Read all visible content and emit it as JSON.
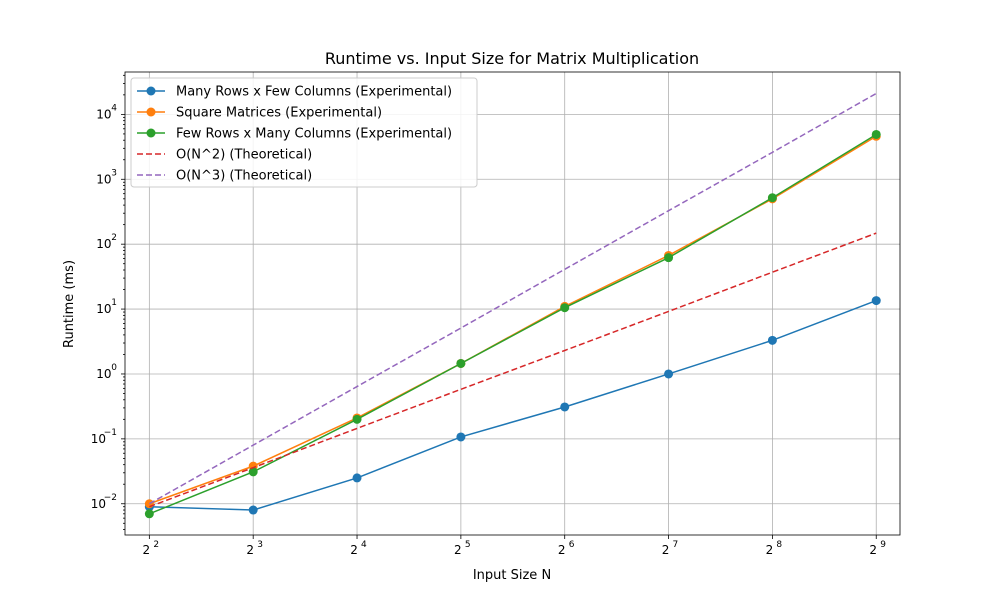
{
  "chart_data": {
    "type": "line",
    "title": "Runtime vs. Input Size for Matrix Multiplication",
    "xlabel": "Input Size N",
    "ylabel": "Runtime (ms)",
    "x_scale": "log2",
    "y_scale": "log10",
    "x": [
      4,
      8,
      16,
      32,
      64,
      128,
      256,
      512
    ],
    "x_tick_labels": [
      {
        "base": "2",
        "exp": "2"
      },
      {
        "base": "2",
        "exp": "3"
      },
      {
        "base": "2",
        "exp": "4"
      },
      {
        "base": "2",
        "exp": "5"
      },
      {
        "base": "2",
        "exp": "6"
      },
      {
        "base": "2",
        "exp": "7"
      },
      {
        "base": "2",
        "exp": "8"
      },
      {
        "base": "2",
        "exp": "9"
      }
    ],
    "y_tick_labels": [
      {
        "base": "10",
        "exp": "−2"
      },
      {
        "base": "10",
        "exp": "−1"
      },
      {
        "base": "10",
        "exp": "0"
      },
      {
        "base": "10",
        "exp": "1"
      },
      {
        "base": "10",
        "exp": "2"
      },
      {
        "base": "10",
        "exp": "3"
      },
      {
        "base": "10",
        "exp": "4"
      }
    ],
    "y_ticks": [
      0.01,
      0.1,
      1,
      10,
      100,
      1000,
      10000
    ],
    "xlim": [
      3.4,
      600
    ],
    "ylim": [
      0.0033,
      45000
    ],
    "grid": true,
    "legend_position": "top-left",
    "series": [
      {
        "name": "Many Rows x Few Columns (Experimental)",
        "color": "#1f77b4",
        "style": "solid",
        "marker": true,
        "values": [
          0.009,
          0.008,
          0.025,
          0.107,
          0.31,
          1.0,
          3.3,
          13.5
        ]
      },
      {
        "name": "Square Matrices (Experimental)",
        "color": "#ff7f0e",
        "style": "solid",
        "marker": true,
        "values": [
          0.01,
          0.038,
          0.21,
          1.45,
          11.0,
          67,
          500,
          4600
        ]
      },
      {
        "name": "Few Rows x Many Columns (Experimental)",
        "color": "#2ca02c",
        "style": "solid",
        "marker": true,
        "values": [
          0.007,
          0.031,
          0.2,
          1.45,
          10.5,
          62,
          520,
          4900
        ]
      },
      {
        "name": "O(N^2) (Theoretical)",
        "color": "#d62728",
        "style": "dashed",
        "marker": false,
        "values": [
          0.009,
          0.036,
          0.145,
          0.58,
          2.3,
          9.2,
          37,
          148
        ]
      },
      {
        "name": "O(N^3) (Theoretical)",
        "color": "#9467bd",
        "style": "dashed",
        "marker": false,
        "values": [
          0.01,
          0.08,
          0.64,
          5.1,
          41,
          328,
          2600,
          21000
        ]
      }
    ]
  }
}
